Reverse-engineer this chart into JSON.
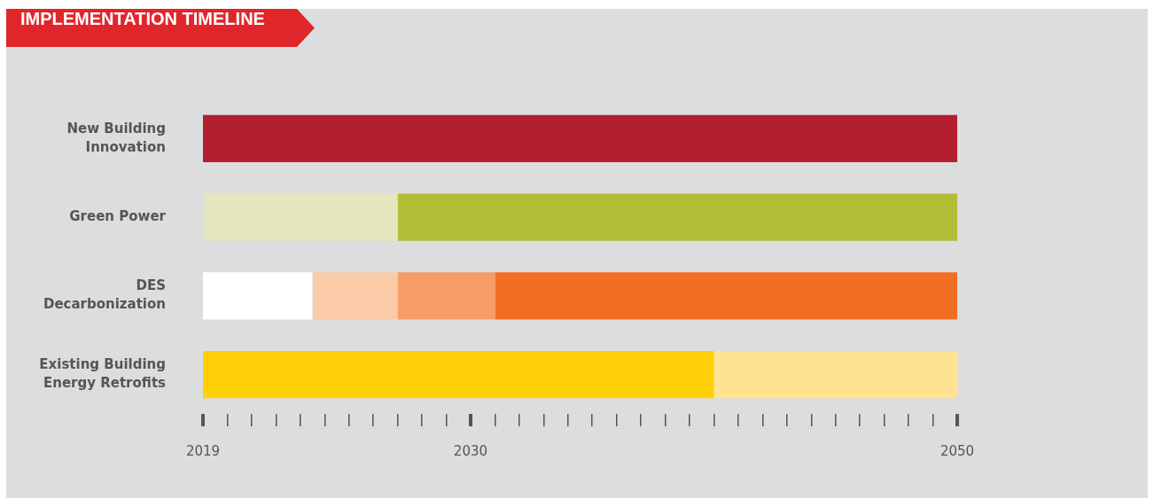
{
  "chart_data": {
    "type": "bar",
    "orientation": "horizontal",
    "title": "IMPLEMENTATION TIMELINE",
    "categories": [
      "New Building Innovation",
      "Green Power",
      "DES Decarbonization",
      "Existing Building Energy Retrofits"
    ],
    "series": [
      {
        "colors": [
          "#b31f2e",
          "#e4e6bf",
          "#ffffff",
          "#ffcf0a"
        ],
        "base": [
          2019,
          2019,
          2019,
          2019
        ],
        "values": [
          31,
          8,
          4.5,
          21
        ]
      },
      {
        "colors": [
          null,
          "#b4bd36",
          "#fbcba8",
          "#ffe391"
        ],
        "base": [
          null,
          2027,
          2023.5,
          2040
        ],
        "values": [
          null,
          23,
          3.5,
          10
        ]
      },
      {
        "colors": [
          null,
          null,
          "#f79c66",
          null
        ],
        "base": [
          null,
          null,
          2027,
          null
        ],
        "values": [
          null,
          null,
          4,
          null
        ]
      },
      {
        "colors": [
          null,
          null,
          "#f26e22",
          null
        ],
        "base": [
          null,
          null,
          2031,
          null
        ],
        "values": [
          null,
          null,
          19,
          null
        ]
      }
    ],
    "xlim": [
      2019,
      2050
    ],
    "xticks": [
      2019,
      {
        "value": 2020,
        "label": null
      },
      {
        "value": 2021,
        "label": null
      },
      {
        "value": 2022,
        "label": null
      },
      {
        "value": 2023,
        "label": null
      },
      {
        "value": 2024,
        "label": null
      },
      {
        "value": 2025,
        "label": null
      },
      {
        "value": 2026,
        "label": null
      },
      {
        "value": 2027,
        "label": null
      },
      {
        "value": 2028,
        "label": null
      },
      {
        "value": 2029,
        "label": null
      },
      2030,
      {
        "value": 2031,
        "label": null
      },
      {
        "value": 2032,
        "label": null
      },
      {
        "value": 2033,
        "label": null
      },
      {
        "value": 2034,
        "label": null
      },
      {
        "value": 2035,
        "label": null
      },
      {
        "value": 2036,
        "label": null
      },
      {
        "value": 2037,
        "label": null
      },
      {
        "value": 2038,
        "label": null
      },
      {
        "value": 2039,
        "label": null
      },
      {
        "value": 2040,
        "label": null
      },
      {
        "value": 2041,
        "label": null
      },
      {
        "value": 2042,
        "label": null
      },
      {
        "value": 2043,
        "label": null
      },
      {
        "value": 2044,
        "label": null
      },
      {
        "value": 2045,
        "label": null
      },
      {
        "value": 2046,
        "label": null
      },
      {
        "value": 2047,
        "label": null
      },
      {
        "value": 2048,
        "label": null
      },
      {
        "value": 2049,
        "label": null
      },
      2050
    ],
    "grid": false,
    "legend": false
  }
}
